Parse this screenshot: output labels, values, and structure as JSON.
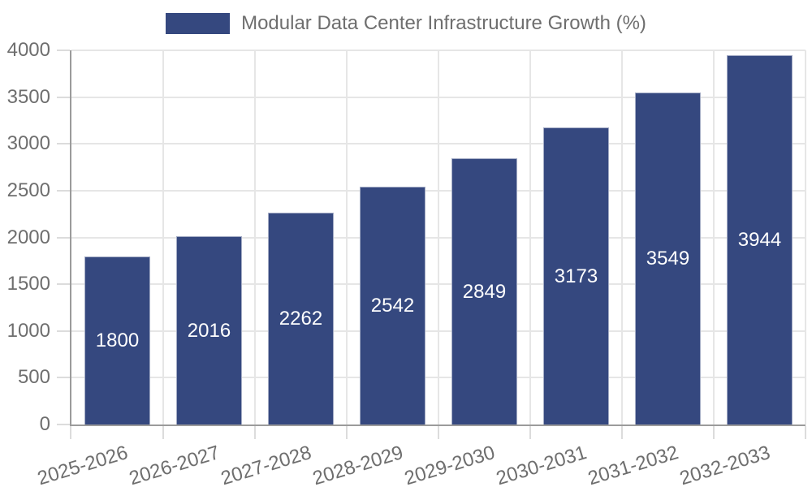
{
  "legend": {
    "label": "Modular Data Center Infrastructure Growth (%)"
  },
  "colors": {
    "bar": "#35487F",
    "grid": "#e6e6e6",
    "axis_line": "#9b9b9b",
    "tick": "#dcdcdc",
    "axis_text": "#6e6e6e",
    "value_label": "#ffffff",
    "legend_text": "#6e6e6e"
  },
  "chart_data": {
    "type": "bar",
    "title": "",
    "series_name": "Modular Data Center Infrastructure Growth (%)",
    "categories": [
      "2025-2026",
      "2026-2027",
      "2027-2028",
      "2028-2029",
      "2029-2030",
      "2030-2031",
      "2031-2032",
      "2032-2033"
    ],
    "values": [
      1800,
      2016,
      2262,
      2542,
      2849,
      3173,
      3549,
      3944
    ],
    "bar_value_labels": [
      "1800",
      "2016",
      "2262",
      "2542",
      "2849",
      "3173",
      "3549",
      "3944"
    ],
    "xlabel": "",
    "ylabel": "",
    "ylim": [
      0,
      4000
    ],
    "yticks": [
      0,
      500,
      1000,
      1500,
      2000,
      2500,
      3000,
      3500,
      4000
    ],
    "ytick_labels": [
      "0",
      "500",
      "1000",
      "1500",
      "2000",
      "2500",
      "3000",
      "3500",
      "4000"
    ],
    "grid": true,
    "legend_position": "top",
    "value_labels_position": "center"
  }
}
